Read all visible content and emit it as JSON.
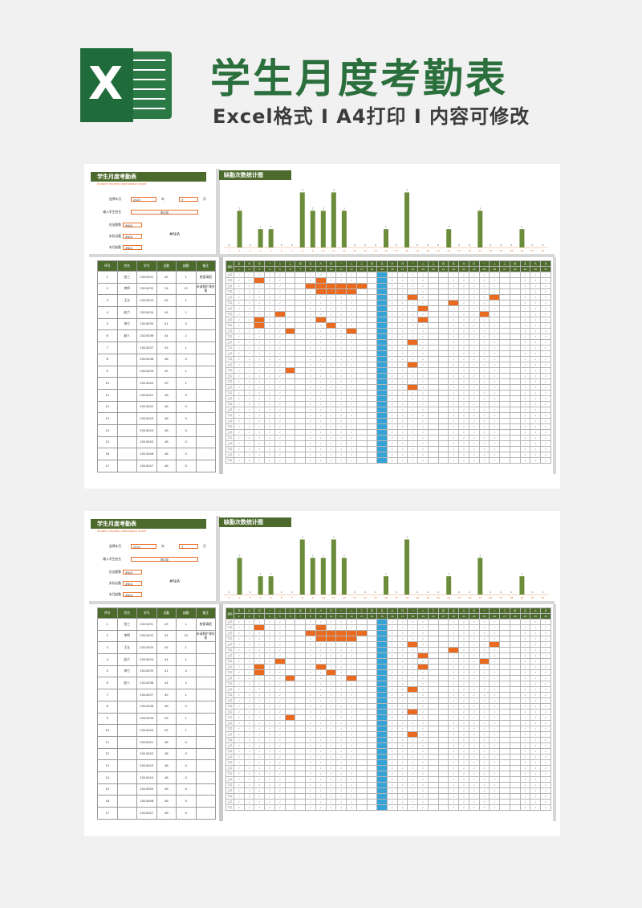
{
  "header": {
    "title": "学生月度考勤表",
    "subtitle": "Excel格式 I A4打印 I 内容可修改",
    "logo_letter": "X"
  },
  "sheet": {
    "title": "学生月度考勤表",
    "subtitle_en": "Student monthly attendance sheet",
    "year_month_label": "选择年月",
    "year": "2024",
    "year_unit": "年",
    "month": "3",
    "month_unit": "月",
    "student_name_label": "输入学生姓名",
    "student_name": "李中凯",
    "due_label": "应出勤数",
    "due_value": "#N/A",
    "actual_label": "实际出勤",
    "actual_value": "#N/A",
    "absent_label": "本月缺勤",
    "absent_value": "#N/A",
    "na_big": "#N/A",
    "chart_title": "缺勤次数统计图"
  },
  "chart_data": {
    "type": "bar",
    "categories": [
      "1",
      "2",
      "3",
      "4",
      "5",
      "6",
      "7",
      "8",
      "9",
      "10",
      "11",
      "12",
      "13",
      "14",
      "15",
      "16",
      "17",
      "18",
      "19",
      "20",
      "21",
      "22",
      "23",
      "24",
      "25",
      "26",
      "27",
      "28",
      "29",
      "30",
      "31"
    ],
    "values": [
      0,
      2,
      0,
      1,
      1,
      0,
      0,
      3,
      2,
      2,
      3,
      2,
      0,
      0,
      0,
      1,
      0,
      3,
      0,
      0,
      0,
      1,
      0,
      0,
      2,
      0,
      0,
      0,
      1,
      0,
      0
    ],
    "ylim": [
      0,
      3.5
    ],
    "color": "#6b8c3b"
  },
  "student_table": {
    "headers": [
      "序号",
      "姓名",
      "学号",
      "出勤",
      "缺勤",
      "备注"
    ],
    "rows": [
      [
        "1",
        "张三",
        "2024031",
        "45",
        "1",
        "感冒请假"
      ],
      [
        "2",
        "李四",
        "2024032",
        "34",
        "12",
        "未请假旷课处理"
      ],
      [
        "3",
        "王五",
        "2024033",
        "45",
        "1",
        ""
      ],
      [
        "4",
        "赵六",
        "2024034",
        "44",
        "1",
        ""
      ],
      [
        "5",
        "宋七",
        "2024035",
        "41",
        "4",
        ""
      ],
      [
        "6",
        "赵八",
        "2024036",
        "44",
        "2",
        ""
      ],
      [
        "7",
        "",
        "2024037",
        "45",
        "1",
        ""
      ],
      [
        "8",
        "",
        "2024038",
        "46",
        "0",
        ""
      ],
      [
        "9",
        "",
        "2024039",
        "45",
        "1",
        ""
      ],
      [
        "10",
        "",
        "2024040",
        "45",
        "1",
        ""
      ],
      [
        "11",
        "",
        "2024041",
        "46",
        "0",
        ""
      ],
      [
        "12",
        "",
        "2024042",
        "46",
        "0",
        ""
      ],
      [
        "13",
        "",
        "2024043",
        "46",
        "0",
        ""
      ],
      [
        "14",
        "",
        "2024044",
        "46",
        "0",
        ""
      ],
      [
        "15",
        "",
        "2024045",
        "46",
        "0",
        ""
      ],
      [
        "16",
        "",
        "2024046",
        "46",
        "0",
        ""
      ],
      [
        "17",
        "",
        "2024047",
        "46",
        "0",
        ""
      ]
    ]
  },
  "attendance": {
    "corner": "星期",
    "weekdays": [
      "五",
      "六",
      "日",
      "一",
      "二",
      "三",
      "四",
      "五",
      "六",
      "日",
      "一",
      "二",
      "三",
      "四",
      "五",
      "六",
      "日",
      "一",
      "二",
      "三",
      "四",
      "五",
      "六",
      "日",
      "一",
      "二",
      "三",
      "四",
      "五",
      "六",
      "日"
    ],
    "days": [
      "1",
      "2",
      "3",
      "4",
      "5",
      "6",
      "7",
      "8",
      "9",
      "10",
      "11",
      "12",
      "13",
      "14",
      "15",
      "16",
      "17",
      "18",
      "19",
      "20",
      "21",
      "22",
      "23",
      "24",
      "25",
      "26",
      "27",
      "28",
      "29",
      "30",
      "31"
    ],
    "am": "上午",
    "pm": "下午",
    "check": "√",
    "highlight_day_index": 14,
    "colors": {
      "green": "#4d6a2d",
      "blue": "#36a3d7",
      "orange": "#ea6a1f"
    }
  }
}
